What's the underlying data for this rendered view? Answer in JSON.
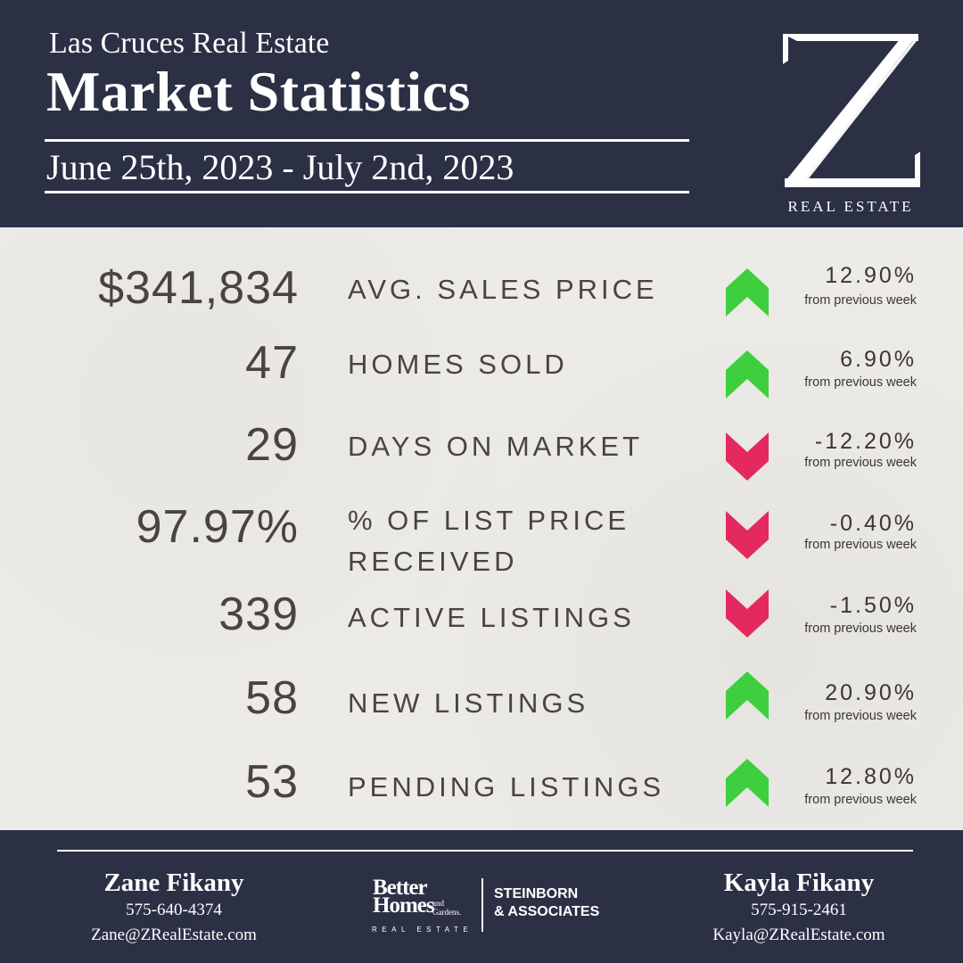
{
  "header": {
    "subtitle": "Las Cruces Real Estate",
    "title": "Market Statistics",
    "date_range": "June 25th, 2023 - July 2nd, 2023",
    "logo_letter": "Z",
    "logo_text": "REAL ESTATE"
  },
  "colors": {
    "navy": "#2b3045",
    "up": "#3dcf3d",
    "down": "#e4295e",
    "text": "#4a4340"
  },
  "stats": [
    {
      "value": "$341,834",
      "label": "AVG. SALES PRICE",
      "label2": "",
      "direction": "up",
      "change": "12.90%",
      "note": "from previous week"
    },
    {
      "value": "47",
      "label": "HOMES SOLD",
      "label2": "",
      "direction": "up",
      "change": "6.90%",
      "note": "from previous week"
    },
    {
      "value": "29",
      "label": "DAYS ON MARKET",
      "label2": "",
      "direction": "down",
      "change": "-12.20%",
      "note": "from previous week"
    },
    {
      "value": "97.97%",
      "label": "% OF LIST PRICE",
      "label2": "RECEIVED",
      "direction": "down",
      "change": "-0.40%",
      "note": "from previous week"
    },
    {
      "value": "339",
      "label": "ACTIVE LISTINGS",
      "label2": "",
      "direction": "down",
      "change": "-1.50%",
      "note": "from previous week"
    },
    {
      "value": "58",
      "label": "NEW LISTINGS",
      "label2": "",
      "direction": "up",
      "change": "20.90%",
      "note": "from previous week"
    },
    {
      "value": "53",
      "label": "PENDING LISTINGS",
      "label2": "",
      "direction": "up",
      "change": "12.80%",
      "note": "from previous week"
    }
  ],
  "footer": {
    "agent_left": {
      "name": "Zane Fikany",
      "phone": "575-640-4374",
      "email": "Zane@ZRealEstate.com"
    },
    "agent_right": {
      "name": "Kayla Fikany",
      "phone": "575-915-2461",
      "email": "Kayla@ZRealEstate.com"
    },
    "brand": {
      "better": "Better",
      "homes": "Homes",
      "gardens": "and Gardens.",
      "real_estate": "REAL ESTATE",
      "firm_line1": "STEINBORN",
      "firm_line2": "& ASSOCIATES"
    }
  }
}
